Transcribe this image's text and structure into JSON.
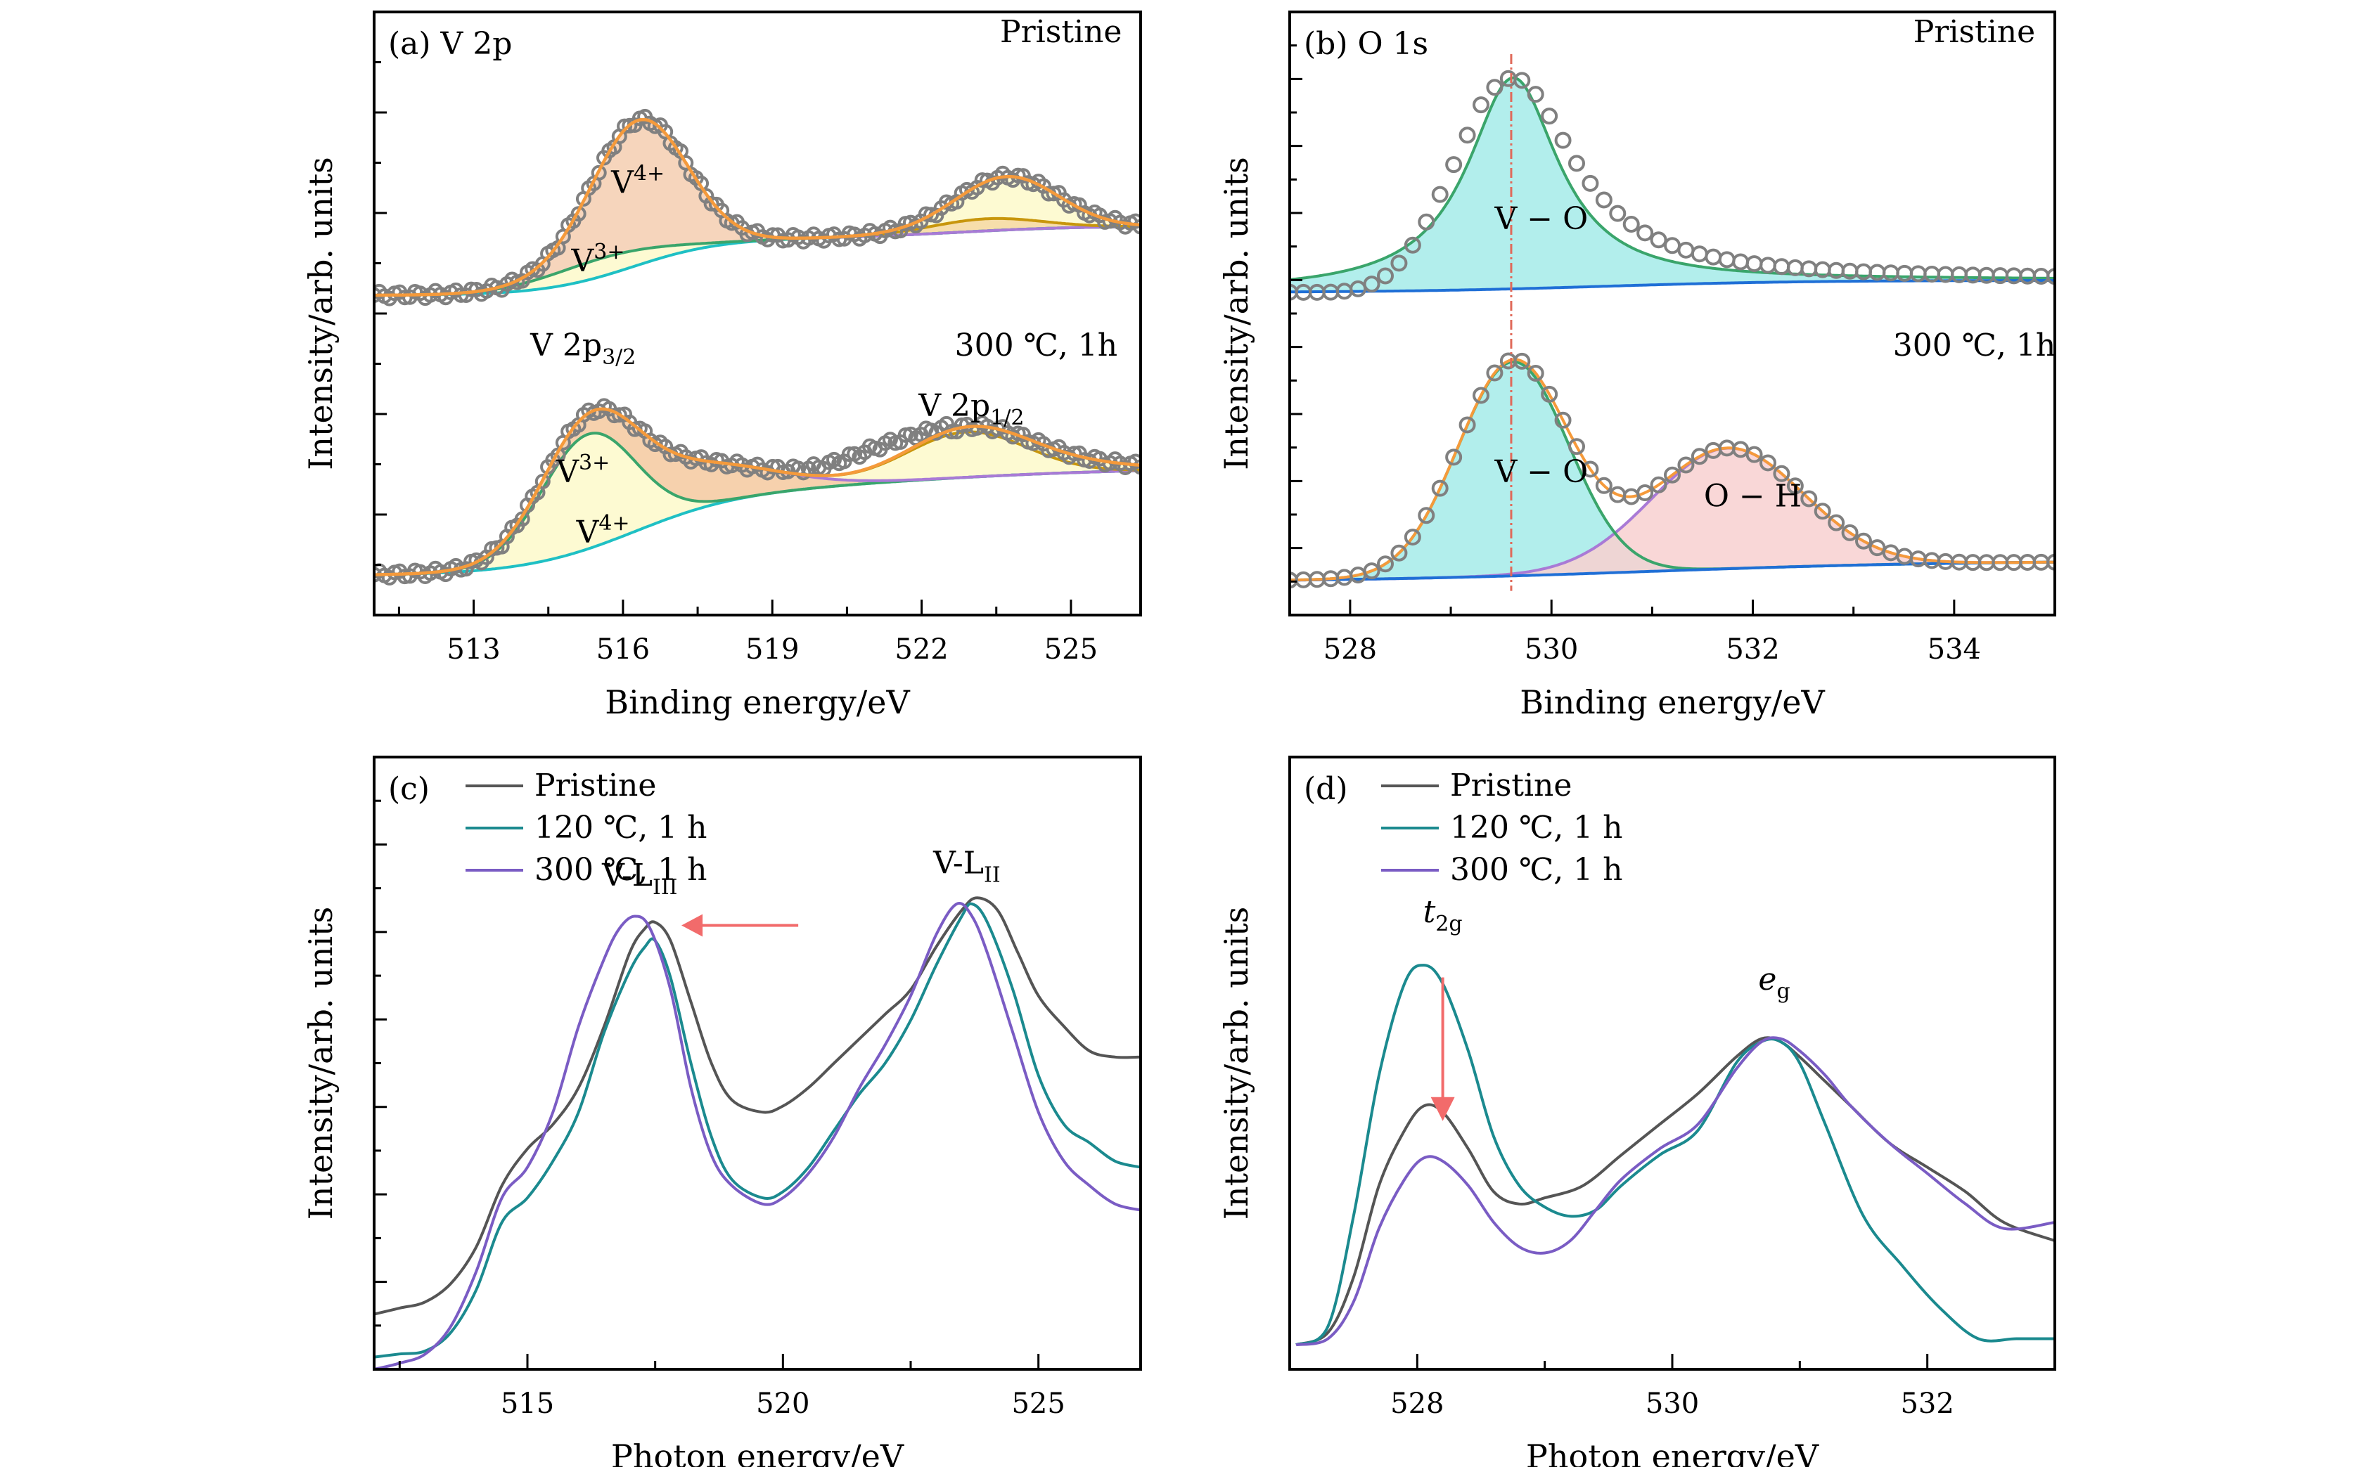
{
  "chart_data": [
    {
      "id": "a",
      "type": "line",
      "panel_label": "(a)",
      "title": "V 2p",
      "xlabel": "Binding energy/eV",
      "ylabel": "Intensity/arb. units",
      "xlim": [
        511.0,
        526.4
      ],
      "ylim": [
        0,
        1
      ],
      "xticks": [
        513,
        516,
        519,
        522,
        525
      ],
      "xtick_labels": [
        "513",
        "516",
        "519",
        "522",
        "525"
      ],
      "minor_xticks": [
        511.5,
        514.5,
        517.5,
        520.5,
        523.5
      ],
      "yticks_count": 12,
      "grid": false,
      "colors": {
        "data": "#808080",
        "envelope": "#f59a3b",
        "v4": "#a97ad6",
        "v3": "#3aa56b",
        "bg_cyan": "#1fc0c4",
        "p12_brown": "#c8960c",
        "fill_v4": "#f6d3b8",
        "fill_v3": "#fdfad0",
        "fill_p12_brown": "#f7dca6"
      },
      "samples": [
        {
          "name": "Pristine",
          "label_pos": [
            524.8,
            0.95
          ],
          "background": {
            "low": 0.53,
            "high": 0.625,
            "center": 516.2,
            "width": 0.9
          },
          "bg2": {
            "high": 0.645,
            "center": 522.8,
            "width": 1.2
          },
          "components": [
            {
              "name": "V4+ 2p3/2",
              "center": 516.35,
              "sigma": 0.95,
              "height": 0.215,
              "color_key": "v4"
            },
            {
              "name": "V3+ 2p3/2",
              "center": 515.6,
              "sigma": 1.2,
              "height": 0.03,
              "color_key": "v3"
            },
            {
              "name": "V4+ 2p1/2",
              "center": 523.8,
              "sigma": 1.0,
              "height": 0.07,
              "color_key": "bg_cyan"
            },
            {
              "name": "V3+ 2p1/2",
              "center": 523.3,
              "sigma": 1.1,
              "height": 0.02,
              "color_key": "p12_brown"
            }
          ],
          "annotations": [
            {
              "text": "V",
              "sup": "4+",
              "x": 516.3,
              "y": 0.7
            },
            {
              "text": "V",
              "sup": "3+",
              "x": 515.5,
              "y": 0.57
            }
          ]
        },
        {
          "name": "300 ℃, 1h",
          "label_pos": [
            524.3,
            0.43
          ],
          "background": {
            "low": 0.065,
            "high": 0.2,
            "center": 516.2,
            "width": 1.1
          },
          "bg2": {
            "high": 0.245,
            "center": 521.5,
            "width": 2.5
          },
          "components": [
            {
              "name": "V3+ 2p3/2",
              "center": 515.3,
              "sigma": 0.95,
              "height": 0.19,
              "color_key": "v3"
            },
            {
              "name": "V4+ 2p3/2",
              "center": 517.2,
              "sigma": 1.6,
              "height": 0.07,
              "color_key": "v4"
            },
            {
              "name": "V3+ 2p1/2",
              "center": 522.9,
              "sigma": 1.2,
              "height": 0.075,
              "color_key": "p12_brown"
            },
            {
              "name": "V4+ 2p1/2",
              "center": 524.6,
              "sigma": 1.6,
              "height": 0.015,
              "color_key": "bg_cyan"
            }
          ],
          "annotations": [
            {
              "text": "V 2p",
              "sub": "3/2",
              "x": 515.2,
              "y": 0.43
            },
            {
              "text": "V 2p",
              "sub": "1/2",
              "x": 523.0,
              "y": 0.33
            },
            {
              "text": "V",
              "sup": "3+",
              "x": 515.2,
              "y": 0.22
            },
            {
              "text": "V",
              "sup": "4+",
              "x": 515.6,
              "y": 0.12
            }
          ]
        }
      ]
    },
    {
      "id": "b",
      "type": "line",
      "panel_label": "(b)",
      "title": "O 1s",
      "xlabel": "Binding energy/eV",
      "ylabel": "Intensity/arb. units",
      "xlim": [
        527.4,
        535.0
      ],
      "ylim": [
        0,
        1
      ],
      "xticks": [
        528,
        530,
        532,
        534
      ],
      "xtick_labels": [
        "528",
        "530",
        "532",
        "534"
      ],
      "minor_xticks": [
        529,
        531,
        533
      ],
      "yticks_count": 18,
      "grid": false,
      "colors": {
        "data": "#808080",
        "envelope": "#f59a3b",
        "vo": "#3aa56b",
        "oh": "#a97ad6",
        "bg": "#1f6fd6",
        "fill_vo": "#b2eeec",
        "fill_oh": "#f8d0d0",
        "ref_line": "#e06a5a"
      },
      "reference_line_x": 529.6,
      "samples": [
        {
          "name": "Pristine",
          "label_pos": [
            534.2,
            0.95
          ],
          "background": {
            "low": 0.535,
            "high": 0.555,
            "center": 530.5,
            "width": 1.0
          },
          "components": [
            {
              "name": "V−O",
              "center": 529.62,
              "gamma": 0.55,
              "height": 0.35,
              "shape": "lorentz",
              "color_key": "vo"
            }
          ],
          "data_tail": {
            "extra_center": 530.6,
            "extra_sigma": 1.2,
            "extra_height": 0.04
          },
          "annotations": [
            {
              "text": "V − O",
              "x": 529.9,
              "y": 0.64
            }
          ]
        },
        {
          "name": "300 ℃, 1h",
          "label_pos": [
            534.2,
            0.43
          ],
          "background": {
            "low": 0.055,
            "high": 0.09,
            "center": 531.0,
            "width": 1.5
          },
          "components": [
            {
              "name": "V−O",
              "center": 529.62,
              "sigma": 0.55,
              "height": 0.355,
              "shape": "gauss",
              "color_key": "vo"
            },
            {
              "name": "O−H",
              "center": 531.75,
              "sigma": 0.75,
              "height": 0.2,
              "shape": "gauss",
              "color_key": "oh"
            }
          ],
          "annotations": [
            {
              "text": "V − O",
              "x": 529.9,
              "y": 0.22
            },
            {
              "text": "O − H",
              "x": 532.0,
              "y": 0.18
            }
          ]
        }
      ]
    },
    {
      "id": "c",
      "type": "line",
      "panel_label": "(c)",
      "xlabel": "Photon energy/eV",
      "ylabel": "Intensity/arb. units",
      "xlim": [
        512.0,
        527.0
      ],
      "ylim": [
        0,
        1
      ],
      "xticks": [
        515,
        520,
        525
      ],
      "xtick_labels": [
        "515",
        "520",
        "525"
      ],
      "minor_xticks": [
        512.5,
        517.5,
        522.5
      ],
      "yticks_count": 14,
      "grid": false,
      "legend": {
        "position": "top-left",
        "entries": [
          {
            "label": "Pristine",
            "color": "#555555"
          },
          {
            "label": "120 ℃, 1 h",
            "color": "#1b8a8f"
          },
          {
            "label": "300 ℃, 1 h",
            "color": "#7a5cc4"
          }
        ]
      },
      "series": [
        {
          "name": "Pristine",
          "color": "#555555",
          "x": [
            512.0,
            512.5,
            513.0,
            513.5,
            514.0,
            514.5,
            515.0,
            515.5,
            516.0,
            516.5,
            517.0,
            517.3,
            517.5,
            517.8,
            518.2,
            518.6,
            519.0,
            519.6,
            520.0,
            520.5,
            521.0,
            521.5,
            522.0,
            522.5,
            523.0,
            523.5,
            523.8,
            524.2,
            524.6,
            525.0,
            525.5,
            526.0,
            526.5,
            527.0
          ],
          "y": [
            0.09,
            0.1,
            0.11,
            0.14,
            0.2,
            0.3,
            0.36,
            0.4,
            0.46,
            0.56,
            0.68,
            0.72,
            0.73,
            0.7,
            0.6,
            0.5,
            0.44,
            0.42,
            0.43,
            0.46,
            0.5,
            0.54,
            0.58,
            0.62,
            0.69,
            0.75,
            0.77,
            0.75,
            0.68,
            0.61,
            0.56,
            0.52,
            0.51,
            0.51
          ]
        },
        {
          "name": "120 ℃, 1 h",
          "color": "#1b8a8f",
          "x": [
            512.0,
            512.5,
            513.0,
            513.5,
            514.0,
            514.5,
            515.0,
            515.5,
            516.0,
            516.5,
            517.0,
            517.3,
            517.5,
            517.8,
            518.2,
            518.6,
            519.0,
            519.6,
            520.0,
            520.5,
            521.0,
            521.5,
            522.0,
            522.5,
            523.0,
            523.5,
            523.7,
            524.0,
            524.5,
            525.0,
            525.5,
            526.0,
            526.5,
            527.0
          ],
          "y": [
            0.02,
            0.025,
            0.03,
            0.06,
            0.13,
            0.24,
            0.28,
            0.34,
            0.42,
            0.55,
            0.65,
            0.69,
            0.7,
            0.64,
            0.5,
            0.38,
            0.31,
            0.28,
            0.29,
            0.33,
            0.39,
            0.45,
            0.5,
            0.57,
            0.66,
            0.74,
            0.76,
            0.73,
            0.62,
            0.48,
            0.4,
            0.37,
            0.34,
            0.33
          ]
        },
        {
          "name": "300 ℃, 1 h",
          "color": "#7a5cc4",
          "x": [
            512.0,
            512.5,
            513.0,
            513.5,
            514.0,
            514.5,
            515.0,
            515.5,
            516.0,
            516.5,
            516.8,
            517.1,
            517.4,
            517.8,
            518.2,
            518.6,
            519.0,
            519.6,
            520.0,
            520.5,
            521.0,
            521.5,
            522.0,
            522.5,
            523.0,
            523.4,
            523.7,
            524.0,
            524.5,
            525.0,
            525.5,
            526.0,
            526.5,
            527.0
          ],
          "y": [
            0.0,
            0.01,
            0.025,
            0.07,
            0.16,
            0.28,
            0.33,
            0.42,
            0.56,
            0.67,
            0.72,
            0.74,
            0.72,
            0.62,
            0.46,
            0.35,
            0.3,
            0.27,
            0.28,
            0.32,
            0.38,
            0.46,
            0.53,
            0.61,
            0.71,
            0.76,
            0.74,
            0.68,
            0.55,
            0.42,
            0.34,
            0.3,
            0.27,
            0.26
          ]
        }
      ],
      "annotations": [
        {
          "text": "V-L",
          "sub": "III",
          "x": 517.2,
          "y": 0.79
        },
        {
          "text": "V-L",
          "sub": "II",
          "x": 523.6,
          "y": 0.81
        }
      ],
      "arrow": {
        "from": [
          520.3,
          0.725
        ],
        "to": [
          518.4,
          0.725
        ],
        "color": "#f26b6b",
        "direction": "left"
      }
    },
    {
      "id": "d",
      "type": "line",
      "panel_label": "(d)",
      "xlabel": "Photon energy/eV",
      "ylabel": "Intensity/arb. units",
      "xlim": [
        527.0,
        533.0
      ],
      "ylim": [
        0,
        1
      ],
      "xticks": [
        528,
        530,
        532
      ],
      "xtick_labels": [
        "528",
        "530",
        "532"
      ],
      "minor_xticks": [
        529,
        531
      ],
      "yticks_count": 0,
      "grid": false,
      "legend": {
        "position": "top-left",
        "entries": [
          {
            "label": "Pristine",
            "color": "#555555"
          },
          {
            "label": "120 ℃, 1 h",
            "color": "#1b8a8f"
          },
          {
            "label": "300 ℃, 1 h",
            "color": "#7a5cc4"
          }
        ]
      },
      "series": [
        {
          "name": "Pristine",
          "color": "#555555",
          "x": [
            527.05,
            527.3,
            527.5,
            527.7,
            527.9,
            528.05,
            528.2,
            528.4,
            528.6,
            528.8,
            529.0,
            529.3,
            529.6,
            529.9,
            530.2,
            530.5,
            530.7,
            530.85,
            531.0,
            531.2,
            531.4,
            531.7,
            532.0,
            532.3,
            532.6,
            533.0
          ],
          "y": [
            0.04,
            0.06,
            0.15,
            0.3,
            0.39,
            0.43,
            0.42,
            0.36,
            0.29,
            0.27,
            0.28,
            0.3,
            0.35,
            0.4,
            0.45,
            0.51,
            0.54,
            0.535,
            0.51,
            0.47,
            0.43,
            0.37,
            0.33,
            0.29,
            0.24,
            0.21
          ]
        },
        {
          "name": "120 ℃, 1 h",
          "color": "#1b8a8f",
          "x": [
            527.05,
            527.3,
            527.5,
            527.7,
            527.9,
            528.05,
            528.2,
            528.4,
            528.6,
            528.8,
            529.0,
            529.2,
            529.4,
            529.6,
            529.9,
            530.2,
            530.5,
            530.7,
            530.85,
            531.0,
            531.2,
            531.5,
            531.8,
            532.1,
            532.4,
            532.7,
            533.0
          ],
          "y": [
            0.04,
            0.07,
            0.25,
            0.48,
            0.63,
            0.66,
            0.63,
            0.52,
            0.38,
            0.3,
            0.265,
            0.25,
            0.26,
            0.3,
            0.35,
            0.39,
            0.5,
            0.535,
            0.535,
            0.5,
            0.4,
            0.25,
            0.17,
            0.1,
            0.05,
            0.05,
            0.05
          ]
        },
        {
          "name": "300 ℃, 1 h",
          "color": "#7a5cc4",
          "x": [
            527.05,
            527.3,
            527.5,
            527.7,
            527.9,
            528.05,
            528.2,
            528.4,
            528.6,
            528.8,
            529.0,
            529.2,
            529.4,
            529.6,
            529.9,
            530.2,
            530.5,
            530.7,
            530.85,
            531.0,
            531.2,
            531.4,
            531.7,
            532.0,
            532.3,
            532.6,
            533.0
          ],
          "y": [
            0.04,
            0.05,
            0.11,
            0.23,
            0.31,
            0.345,
            0.34,
            0.3,
            0.24,
            0.2,
            0.19,
            0.21,
            0.26,
            0.31,
            0.36,
            0.4,
            0.49,
            0.535,
            0.54,
            0.52,
            0.48,
            0.43,
            0.37,
            0.32,
            0.27,
            0.23,
            0.24
          ]
        }
      ],
      "annotations": [
        {
          "text": "t",
          "sub": "2g",
          "italic": true,
          "x": 528.2,
          "y": 0.73
        },
        {
          "text": "e",
          "sub": "g",
          "italic": true,
          "x": 530.8,
          "y": 0.62
        }
      ],
      "arrow": {
        "from": [
          528.2,
          0.64
        ],
        "to": [
          528.2,
          0.44
        ],
        "color": "#f26b6b",
        "direction": "down"
      }
    }
  ]
}
